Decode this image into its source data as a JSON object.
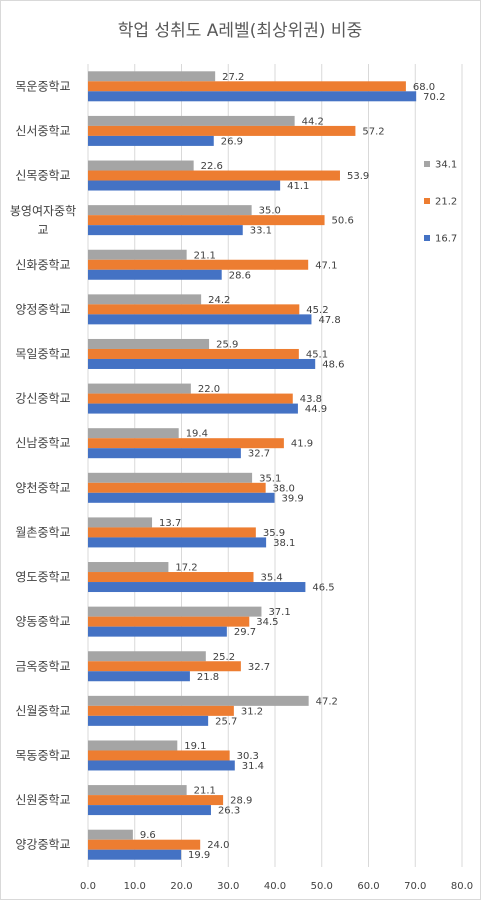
{
  "chart_data": {
    "type": "bar",
    "orientation": "horizontal",
    "title": "학업 성취도 A레벨(최상위권) 비중",
    "categories": [
      "목운중학교",
      "신서중학교",
      "신목중학교",
      "봉영여자중학교",
      "신화중학교",
      "양정중학교",
      "목일중학교",
      "강신중학교",
      "신남중학교",
      "양천중학교",
      "월촌중학교",
      "영도중학교",
      "양동중학교",
      "금옥중학교",
      "신월중학교",
      "목동중학교",
      "신원중학교",
      "양강중학교"
    ],
    "category_display": [
      [
        "목운중학교"
      ],
      [
        "신서중학교"
      ],
      [
        "신목중학교"
      ],
      [
        "봉영여자중학",
        "교"
      ],
      [
        "신화중학교"
      ],
      [
        "양정중학교"
      ],
      [
        "목일중학교"
      ],
      [
        "강신중학교"
      ],
      [
        "신남중학교"
      ],
      [
        "양천중학교"
      ],
      [
        "월촌중학교"
      ],
      [
        "영도중학교"
      ],
      [
        "양동중학교"
      ],
      [
        "금옥중학교"
      ],
      [
        "신월중학교"
      ],
      [
        "목동중학교"
      ],
      [
        "신원중학교"
      ],
      [
        "양강중학교"
      ]
    ],
    "series": [
      {
        "name": "34.1",
        "color": "#a5a5a5",
        "values": [
          27.2,
          44.2,
          22.6,
          35.0,
          21.1,
          24.2,
          25.9,
          22.0,
          19.4,
          35.1,
          13.7,
          17.2,
          37.1,
          25.2,
          47.2,
          19.1,
          21.1,
          9.6
        ]
      },
      {
        "name": "21.2",
        "color": "#ed7d31",
        "values": [
          68.0,
          57.2,
          53.9,
          50.6,
          47.1,
          45.2,
          45.1,
          43.8,
          41.9,
          38.0,
          35.9,
          35.4,
          34.5,
          32.7,
          31.2,
          30.3,
          28.9,
          24.0
        ]
      },
      {
        "name": "16.7",
        "color": "#4472c4",
        "values": [
          70.2,
          26.9,
          41.1,
          33.1,
          28.6,
          47.8,
          48.6,
          44.9,
          32.7,
          39.9,
          38.1,
          46.5,
          29.7,
          21.8,
          25.7,
          31.4,
          26.3,
          19.9
        ]
      }
    ],
    "xlim": [
      0,
      80
    ],
    "xticks": [
      "0.0",
      "10.0",
      "20.0",
      "30.0",
      "40.0",
      "50.0",
      "60.0",
      "70.0",
      "80.0"
    ],
    "grid": true,
    "legend_position": "right"
  }
}
